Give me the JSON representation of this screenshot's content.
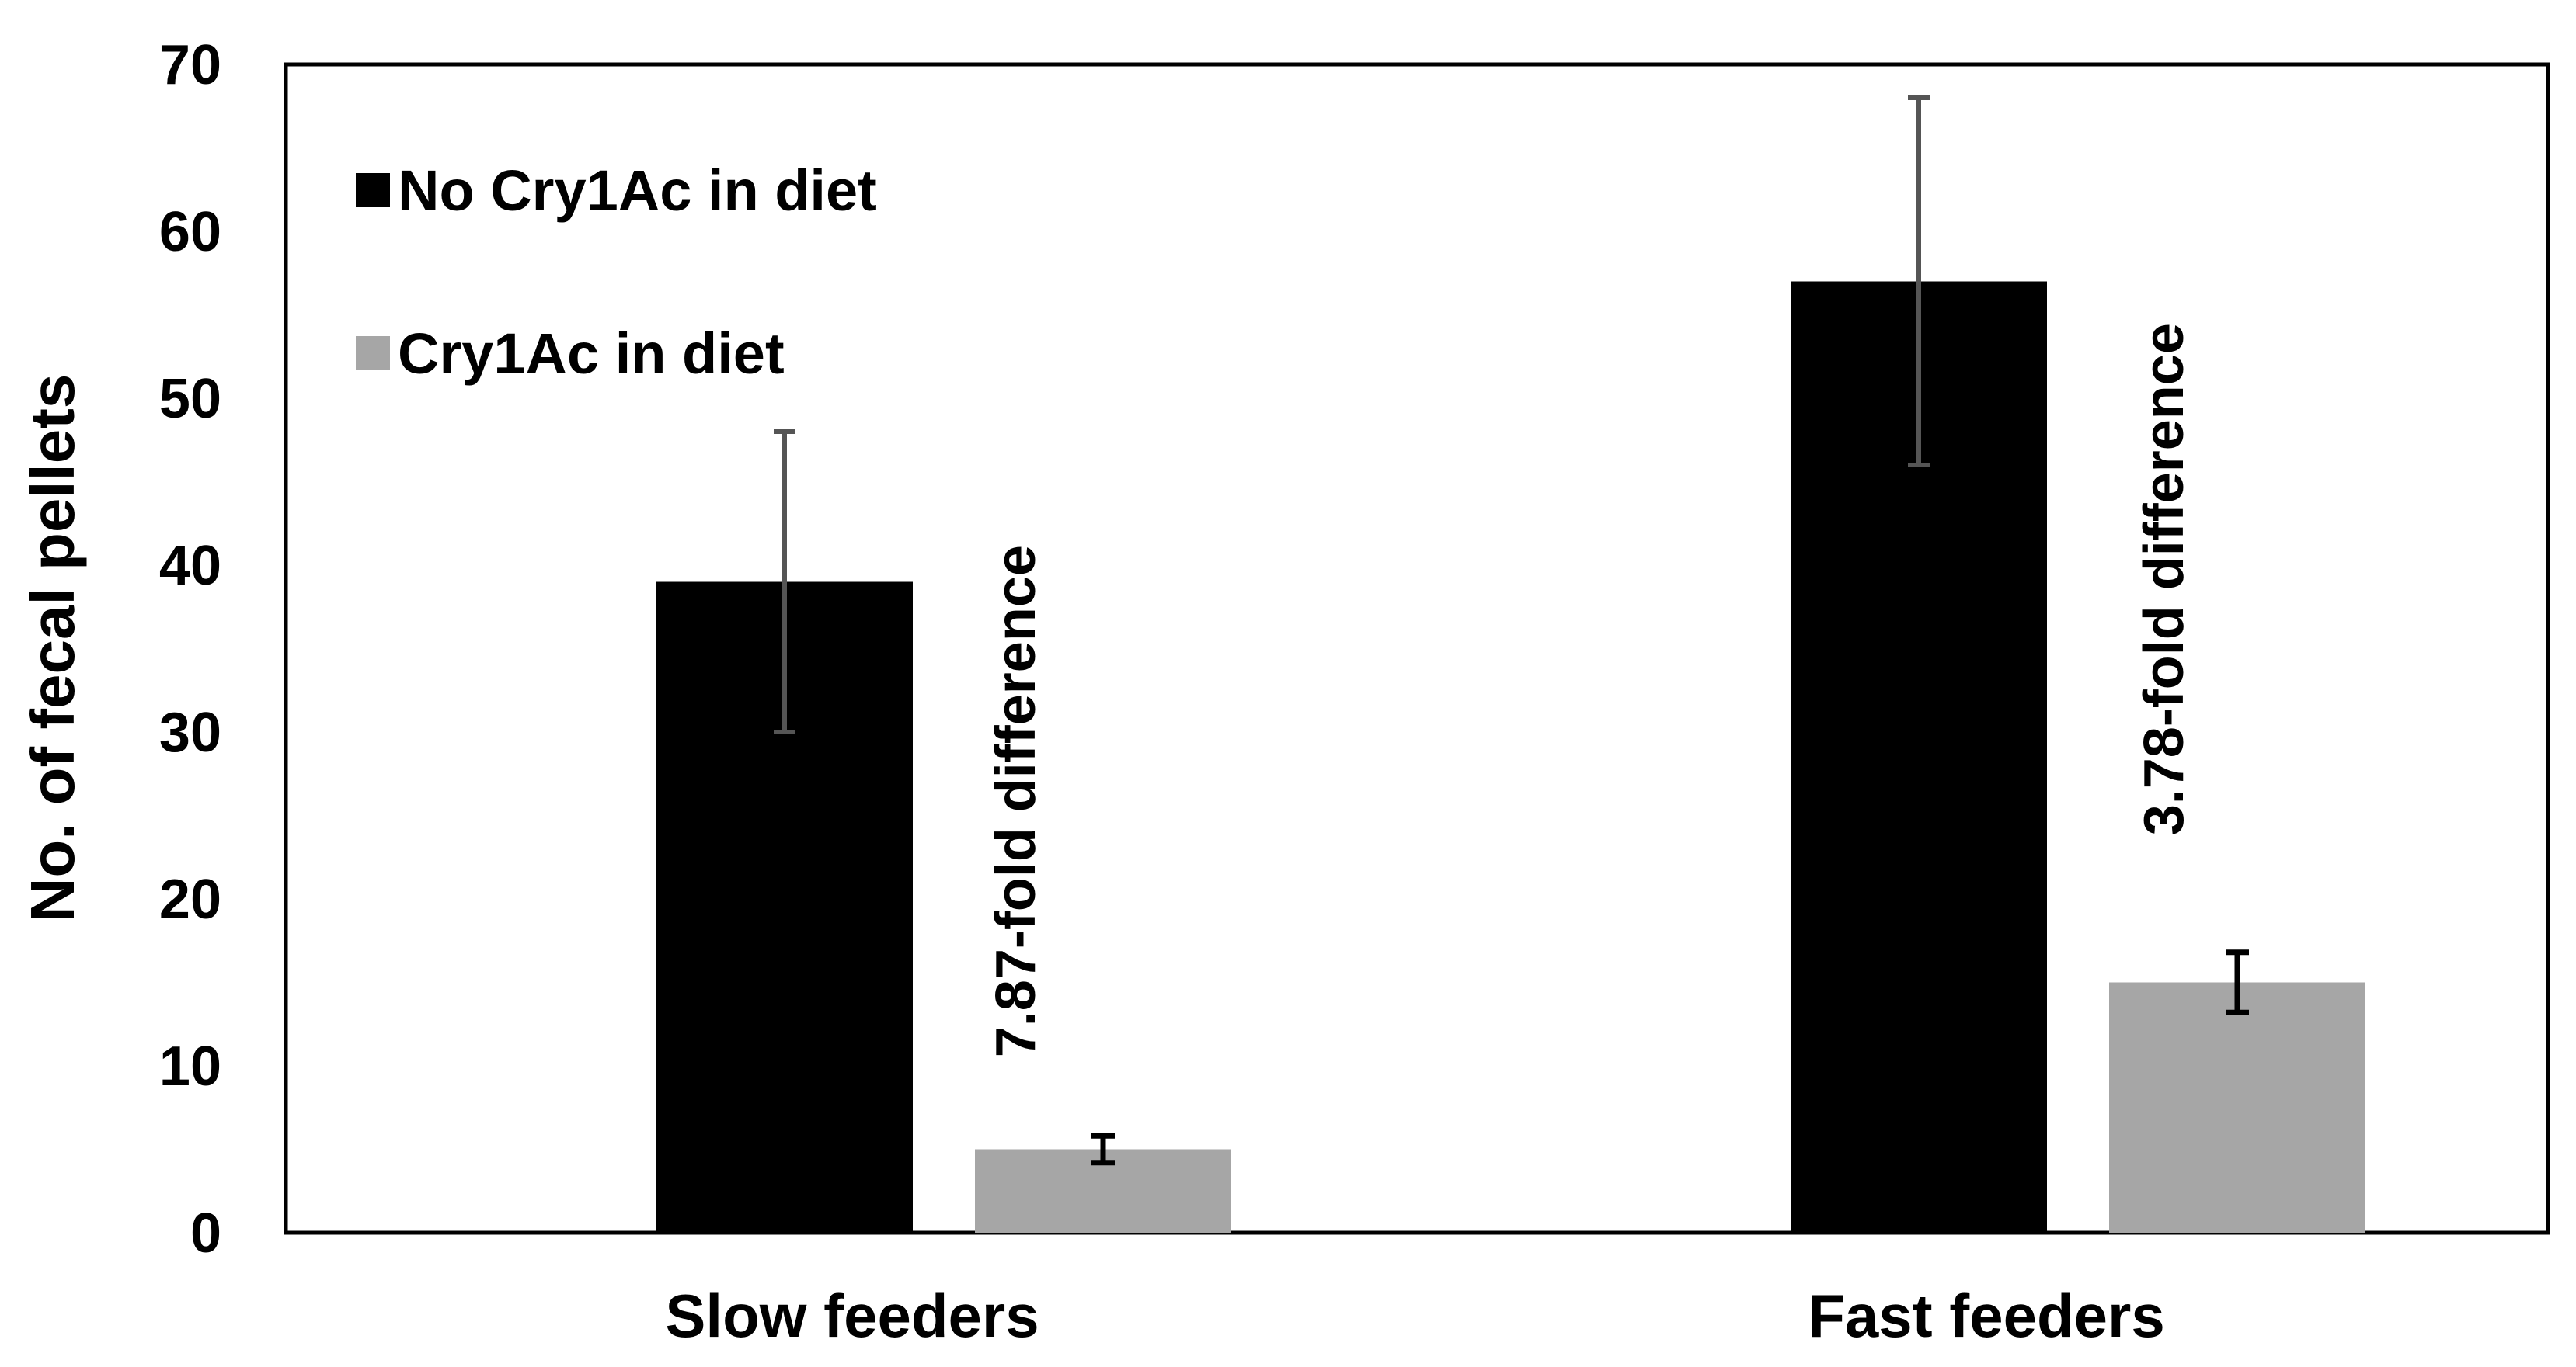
{
  "chart_data": {
    "type": "bar",
    "title": "",
    "xlabel": "",
    "ylabel": "No. of fecal pellets",
    "ylim": [
      0,
      70
    ],
    "yticks": [
      0,
      10,
      20,
      30,
      40,
      50,
      60,
      70
    ],
    "ytick_labels": [
      "0",
      "10",
      "20",
      "30",
      "40",
      "50",
      "60",
      "70"
    ],
    "grid": false,
    "legend_position": "top-left",
    "categories": [
      "Slow feeders",
      "Fast feeders"
    ],
    "series": [
      {
        "name": "No Cry1Ac in diet",
        "color": "#000000",
        "values": [
          39,
          57
        ],
        "error": [
          [
            30,
            48
          ],
          [
            46,
            68
          ]
        ],
        "error_color": "#555555"
      },
      {
        "name": "Cry1Ac in diet",
        "color": "#a6a6a6",
        "values": [
          5,
          15
        ],
        "error": [
          [
            4.2,
            5.8
          ],
          [
            13.2,
            16.8
          ]
        ],
        "error_color": "#000000"
      }
    ],
    "annotations": [
      {
        "category": "Slow feeders",
        "text": "7.87-fold difference",
        "orientation": "vertical"
      },
      {
        "category": "Fast feeders",
        "text": "3.78-fold difference",
        "orientation": "vertical"
      }
    ]
  }
}
